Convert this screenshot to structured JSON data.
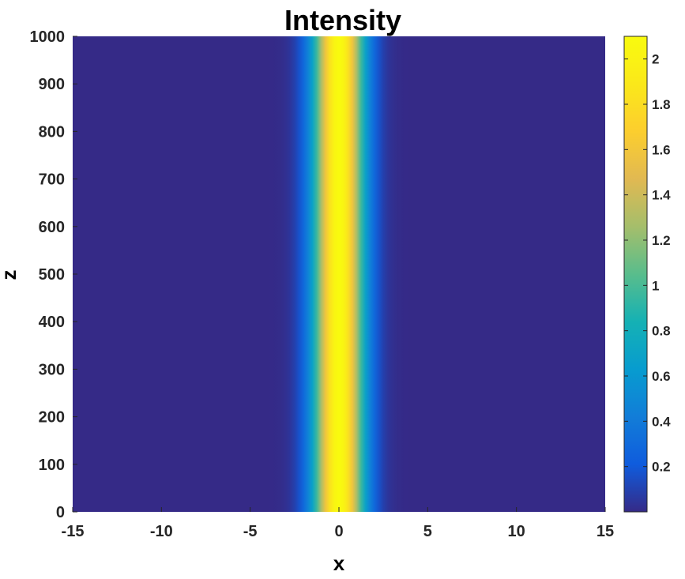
{
  "chart_data": {
    "type": "heatmap",
    "title": "Intensity",
    "xlabel": "x",
    "ylabel": "z",
    "xlim": [
      -15,
      15
    ],
    "ylim": [
      0,
      1000
    ],
    "x_ticks": [
      -15,
      -10,
      -5,
      0,
      5,
      10,
      15
    ],
    "x_tick_labels": [
      "-15",
      "-10",
      "-5",
      "0",
      "5",
      "10",
      "15"
    ],
    "y_ticks": [
      0,
      100,
      200,
      300,
      400,
      500,
      600,
      700,
      800,
      900,
      1000
    ],
    "y_tick_labels": [
      "0",
      "100",
      "200",
      "300",
      "400",
      "500",
      "600",
      "700",
      "800",
      "900",
      "1000"
    ],
    "colorbar": {
      "range": [
        0,
        2.1
      ],
      "ticks": [
        0.2,
        0.4,
        0.6,
        0.8,
        1,
        1.2,
        1.4,
        1.6,
        1.8,
        2
      ],
      "tick_labels": [
        "0.2",
        "0.4",
        "0.6",
        "0.8",
        "1",
        "1.2",
        "1.4",
        "1.6",
        "1.8",
        "2"
      ],
      "colormap": "parula"
    },
    "profile": {
      "description_type": "gaussian-beam-along-x-constant-in-z",
      "center_x": 0,
      "peak_intensity": 2.1,
      "sigma_x": 1.0
    },
    "grid": false
  }
}
